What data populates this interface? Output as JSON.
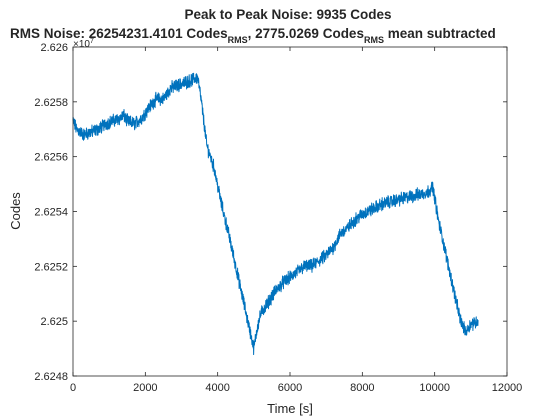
{
  "chart_data": {
    "type": "line",
    "title": "Peak to Peak Noise: 9935 Codes",
    "subtitle": {
      "prefix": "RMS Noise: 26254231.4101 Codes",
      "sub1": "RMS",
      "middle": ", 2775.0269 Codes",
      "sub2": "RMS",
      "suffix": " mean subtracted"
    },
    "xlabel": "Time [s]",
    "ylabel": "Codes",
    "y_exponent_label": "×10",
    "y_exponent": "7",
    "xlim": [
      0,
      12000
    ],
    "ylim": [
      2.6248,
      2.626
    ],
    "x_ticks": [
      0,
      2000,
      4000,
      6000,
      8000,
      10000,
      12000
    ],
    "x_tick_labels": [
      "0",
      "2000",
      "4000",
      "6000",
      "8000",
      "10000",
      "12000"
    ],
    "y_ticks": [
      2.6248,
      2.625,
      2.6252,
      2.6254,
      2.6256,
      2.6258,
      2.626
    ],
    "y_tick_labels": [
      "2.6248",
      "2.625",
      "2.6252",
      "2.6254",
      "2.6256",
      "2.6258",
      "2.626"
    ],
    "grid": false,
    "line_color": "#0072BD",
    "series": [
      {
        "x": [
          0,
          100,
          300,
          500,
          700,
          900,
          1100,
          1300,
          1400,
          1500,
          1700,
          1900,
          2100,
          2300,
          2500,
          2700,
          2900,
          3100,
          3300,
          3450,
          3550,
          3700,
          3900,
          4100,
          4300,
          4500,
          4700,
          4900,
          5000,
          5100,
          5200,
          5400,
          5600,
          5800,
          6000,
          6200,
          6400,
          6600,
          6800,
          7000,
          7200,
          7400,
          7600,
          7800,
          8000,
          8300,
          8600,
          8900,
          9200,
          9500,
          9800,
          9950,
          10100,
          10300,
          10500,
          10700,
          10850,
          11000,
          11200
        ],
        "y": [
          2.62573,
          2.6257,
          2.62568,
          2.62569,
          2.6257,
          2.62572,
          2.62573,
          2.62574,
          2.62575,
          2.62573,
          2.62572,
          2.62574,
          2.62578,
          2.62581,
          2.62581,
          2.62585,
          2.62586,
          2.62587,
          2.62588,
          2.62589,
          2.6258,
          2.62564,
          2.62556,
          2.62543,
          2.62532,
          2.6252,
          2.62508,
          2.62496,
          2.6249,
          2.62498,
          2.62503,
          2.62507,
          2.62511,
          2.62514,
          2.62516,
          2.62518,
          2.6252,
          2.6252,
          2.62522,
          2.62524,
          2.62527,
          2.62532,
          2.62534,
          2.62537,
          2.62539,
          2.62541,
          2.62543,
          2.62544,
          2.62545,
          2.62546,
          2.62547,
          2.62549,
          2.62537,
          2.62525,
          2.62513,
          2.62501,
          2.62496,
          2.62499,
          2.625
        ]
      }
    ]
  }
}
